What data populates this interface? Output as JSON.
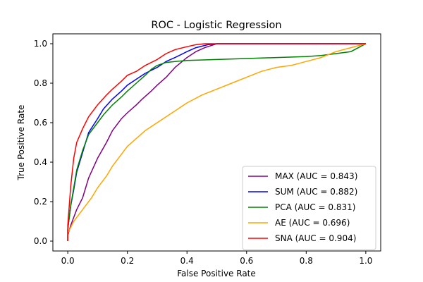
{
  "chart_data": {
    "type": "line",
    "title": "ROC - Logistic Regression",
    "xlabel": "False Positive Rate",
    "ylabel": "True Positive Rate",
    "xlim": [
      -0.05,
      1.05
    ],
    "ylim": [
      -0.05,
      1.05
    ],
    "xticks": [
      0.0,
      0.2,
      0.4,
      0.6,
      0.8,
      1.0
    ],
    "yticks": [
      0.0,
      0.2,
      0.4,
      0.6,
      0.8,
      1.0
    ],
    "tick_labels_x": [
      "0.0",
      "0.2",
      "0.4",
      "0.6",
      "0.8",
      "1.0"
    ],
    "tick_labels_y": [
      "0.0",
      "0.2",
      "0.4",
      "0.6",
      "0.8",
      "1.0"
    ],
    "grid": false,
    "legend_position": "lower-right",
    "series": [
      {
        "name": "MAX (AUC = 0.843)",
        "color": "#800080",
        "x": [
          0.0,
          0.0,
          0.01,
          0.02,
          0.03,
          0.05,
          0.07,
          0.1,
          0.13,
          0.15,
          0.18,
          0.2,
          0.23,
          0.25,
          0.28,
          0.3,
          0.33,
          0.36,
          0.4,
          0.43,
          0.46,
          0.5,
          0.55,
          0.6,
          0.7,
          0.8,
          0.9,
          1.0
        ],
        "y": [
          0.0,
          0.03,
          0.08,
          0.12,
          0.16,
          0.22,
          0.32,
          0.42,
          0.5,
          0.56,
          0.62,
          0.65,
          0.69,
          0.72,
          0.76,
          0.79,
          0.83,
          0.88,
          0.93,
          0.96,
          0.98,
          1.0,
          1.0,
          1.0,
          1.0,
          1.0,
          1.0,
          1.0
        ]
      },
      {
        "name": "SUM (AUC = 0.882)",
        "color": "#0000ff",
        "x": [
          0.0,
          0.0,
          0.01,
          0.02,
          0.03,
          0.05,
          0.07,
          0.1,
          0.12,
          0.15,
          0.18,
          0.2,
          0.23,
          0.26,
          0.3,
          0.33,
          0.36,
          0.4,
          0.43,
          0.47,
          0.5,
          0.6,
          0.7,
          0.8,
          0.9,
          1.0
        ],
        "y": [
          0.0,
          0.06,
          0.18,
          0.26,
          0.35,
          0.45,
          0.55,
          0.62,
          0.67,
          0.72,
          0.76,
          0.79,
          0.82,
          0.85,
          0.88,
          0.91,
          0.93,
          0.96,
          0.98,
          0.995,
          1.0,
          1.0,
          1.0,
          1.0,
          1.0,
          1.0
        ]
      },
      {
        "name": "PCA (AUC = 0.831)",
        "color": "#008000",
        "x": [
          0.0,
          0.0,
          0.01,
          0.02,
          0.03,
          0.05,
          0.07,
          0.1,
          0.12,
          0.15,
          0.18,
          0.2,
          0.23,
          0.26,
          0.28,
          0.3,
          0.33,
          0.36,
          0.4,
          0.5,
          0.6,
          0.7,
          0.8,
          0.85,
          0.9,
          0.95,
          1.0
        ],
        "y": [
          0.0,
          0.06,
          0.18,
          0.27,
          0.36,
          0.46,
          0.54,
          0.6,
          0.64,
          0.69,
          0.73,
          0.76,
          0.8,
          0.84,
          0.87,
          0.89,
          0.905,
          0.91,
          0.915,
          0.92,
          0.925,
          0.93,
          0.935,
          0.94,
          0.95,
          0.96,
          1.0
        ]
      },
      {
        "name": "AE (AUC = 0.696)",
        "color": "#ffa500",
        "x": [
          0.0,
          0.0,
          0.02,
          0.05,
          0.08,
          0.1,
          0.13,
          0.15,
          0.18,
          0.2,
          0.23,
          0.26,
          0.3,
          0.33,
          0.36,
          0.4,
          0.45,
          0.5,
          0.55,
          0.6,
          0.65,
          0.7,
          0.75,
          0.8,
          0.85,
          0.9,
          0.95,
          1.0
        ],
        "y": [
          0.0,
          0.04,
          0.1,
          0.16,
          0.22,
          0.27,
          0.33,
          0.38,
          0.44,
          0.48,
          0.52,
          0.56,
          0.6,
          0.63,
          0.66,
          0.7,
          0.74,
          0.77,
          0.8,
          0.83,
          0.86,
          0.88,
          0.89,
          0.91,
          0.93,
          0.96,
          0.98,
          1.0
        ]
      },
      {
        "name": "SNA (AUC = 0.904)",
        "color": "#ff0000",
        "x": [
          0.0,
          0.0,
          0.01,
          0.02,
          0.03,
          0.05,
          0.07,
          0.1,
          0.13,
          0.15,
          0.18,
          0.2,
          0.23,
          0.26,
          0.3,
          0.33,
          0.36,
          0.4,
          0.43,
          0.46,
          0.5,
          0.6,
          0.7,
          0.8,
          0.9,
          1.0
        ],
        "y": [
          0.0,
          0.08,
          0.28,
          0.42,
          0.5,
          0.57,
          0.63,
          0.69,
          0.74,
          0.77,
          0.81,
          0.84,
          0.86,
          0.89,
          0.92,
          0.95,
          0.97,
          0.985,
          0.995,
          1.0,
          1.0,
          1.0,
          1.0,
          1.0,
          1.0,
          1.0
        ]
      }
    ]
  }
}
